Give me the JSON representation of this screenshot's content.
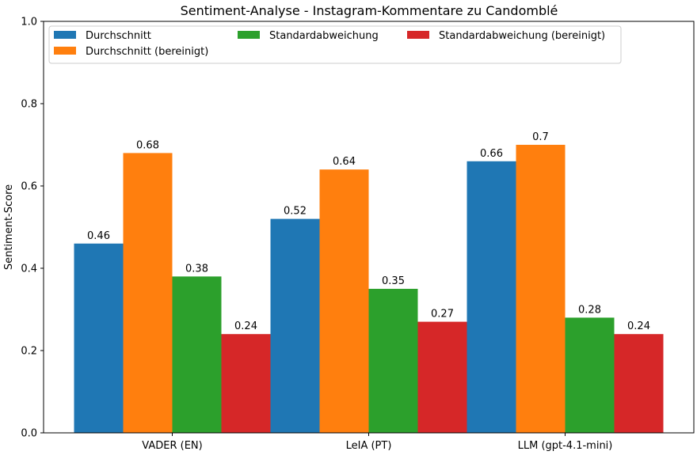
{
  "chart_data": {
    "type": "bar",
    "title": "Sentiment-Analyse - Instagram-Kommentare zu Candomblé",
    "xlabel": "",
    "ylabel": "Sentiment-Score",
    "ylim": [
      0,
      1.0
    ],
    "yticks": [
      "0.0",
      "0.2",
      "0.4",
      "0.6",
      "0.8",
      "1.0"
    ],
    "categories": [
      "VADER (EN)",
      "LeIA (PT)",
      "LLM (gpt-4.1-mini)"
    ],
    "series": [
      {
        "name": "Durchschnitt",
        "color": "#1f77b4",
        "values": [
          0.46,
          0.52,
          0.66
        ],
        "labels": [
          "0.46",
          "0.52",
          "0.66"
        ]
      },
      {
        "name": "Durchschnitt (bereinigt)",
        "color": "#ff7f0e",
        "values": [
          0.68,
          0.64,
          0.7
        ],
        "labels": [
          "0.68",
          "0.64",
          "0.7"
        ]
      },
      {
        "name": "Standardabweichung",
        "color": "#2ca02c",
        "values": [
          0.38,
          0.35,
          0.28
        ],
        "labels": [
          "0.38",
          "0.35",
          "0.28"
        ]
      },
      {
        "name": "Standardabweichung (bereinigt)",
        "color": "#d62728",
        "values": [
          0.24,
          0.27,
          0.24
        ],
        "labels": [
          "0.24",
          "0.27",
          "0.24"
        ]
      }
    ],
    "legend_position": "top-left",
    "grid": false
  }
}
